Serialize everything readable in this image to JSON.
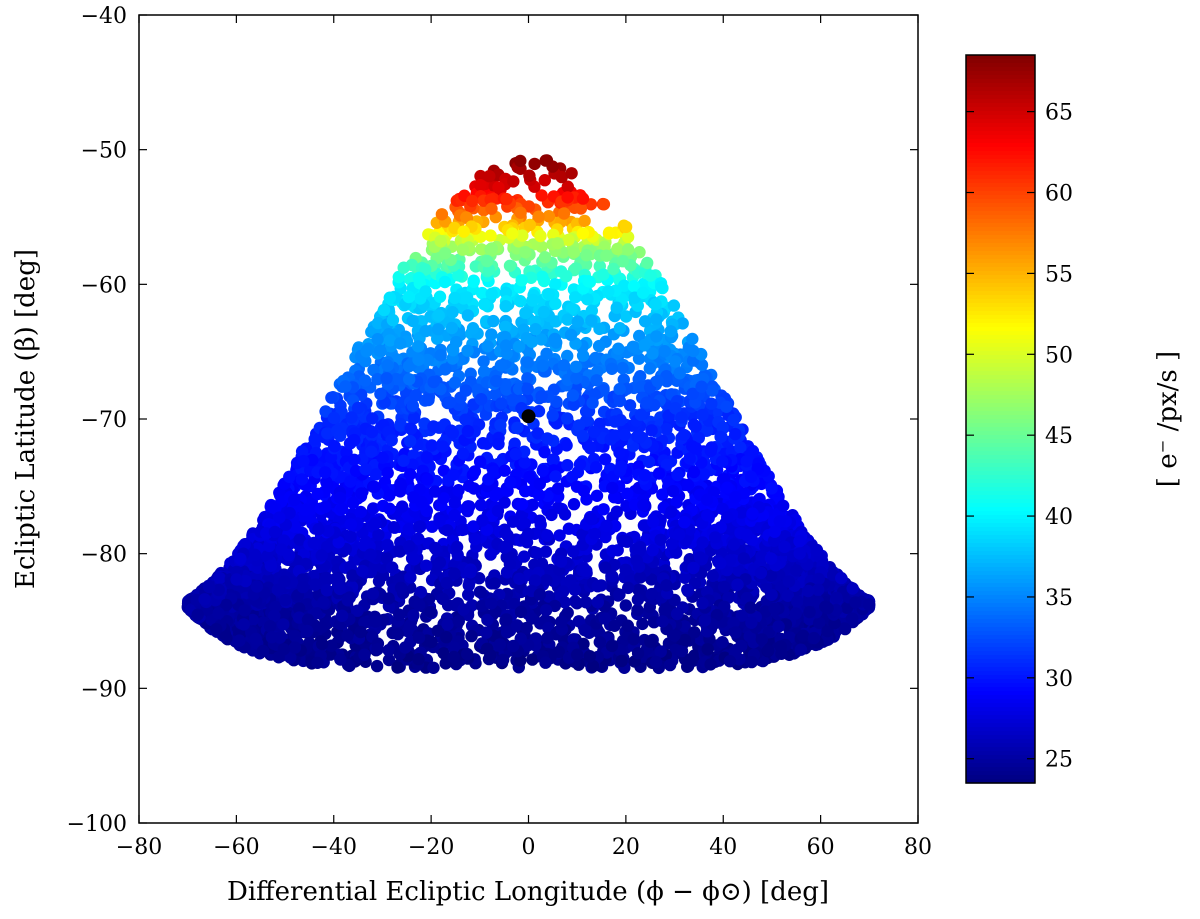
{
  "chart_data": {
    "type": "scatter",
    "title": "",
    "xlabel": "Differential Ecliptic Longitude (ϕ − ϕ⊙) [deg]",
    "ylabel": "Ecliptic Latitude (β) [deg]",
    "xlim": [
      -80,
      80
    ],
    "ylim": [
      -100,
      -40
    ],
    "xticks": [
      -80,
      -60,
      -40,
      -20,
      0,
      20,
      40,
      60,
      80
    ],
    "yticks": [
      -100,
      -90,
      -80,
      -70,
      -60,
      -50,
      -40
    ],
    "grid": false,
    "colormap": "jet",
    "colorbar": {
      "label": "[ e⁻ /px/s ]",
      "range": [
        23.5,
        68.5
      ],
      "ticks": [
        25,
        30,
        35,
        40,
        45,
        50,
        55,
        60,
        65
      ]
    },
    "field_extent": {
      "x_range": [
        -70,
        70
      ],
      "top_latitude": -50.5,
      "bottom_latitude": -88.5
    },
    "marker": {
      "x": 0,
      "y": -69.8,
      "color": "#000000"
    },
    "value_gradient": [
      {
        "latitude": -51,
        "value": 68
      },
      {
        "latitude": -53,
        "value": 64
      },
      {
        "latitude": -55,
        "value": 57
      },
      {
        "latitude": -57,
        "value": 48
      },
      {
        "latitude": -60,
        "value": 40
      },
      {
        "latitude": -64,
        "value": 36
      },
      {
        "latitude": -70,
        "value": 31
      },
      {
        "latitude": -78,
        "value": 28
      },
      {
        "latitude": -84,
        "value": 25
      },
      {
        "latitude": -88,
        "value": 24
      }
    ]
  }
}
